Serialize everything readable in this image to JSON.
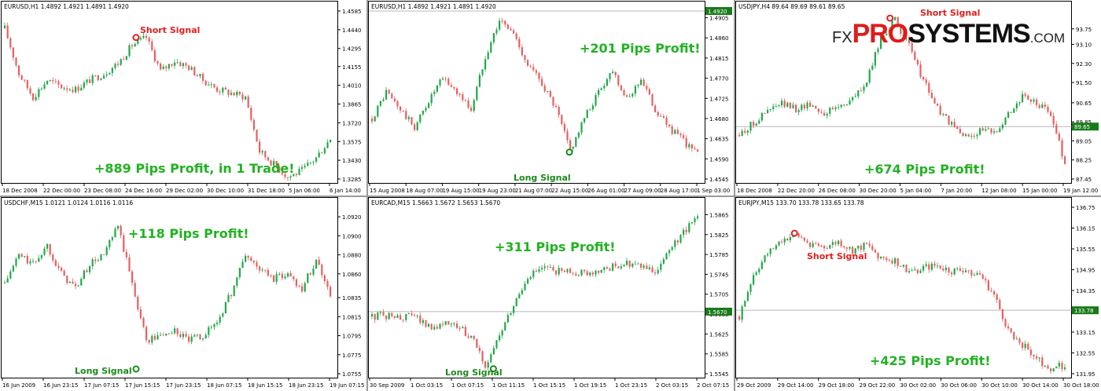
{
  "logo": {
    "prefix": "FX",
    "brand_red": "PRO",
    "brand_black": "SYSTEMS",
    "suffix": ".COM"
  },
  "colors": {
    "bull": "#22a84a",
    "bear": "#e66060",
    "axis": "#000000",
    "profit_text": "#22b222",
    "signal_short": "#e02020",
    "signal_long": "#1a8a1a"
  },
  "chart_data": [
    {
      "type": "candlestick",
      "title": "EURUSD,H1  1.4892 1.4921 1.4891 1.4920",
      "ylim": [
        1.3285,
        1.4585
      ],
      "yticks": [
        "1.4585",
        "1.4440",
        "1.4295",
        "1.4155",
        "1.4010",
        "1.3865",
        "1.3720",
        "1.3575",
        "1.3430",
        "1.3285"
      ],
      "xticks": [
        "18 Dec 2008",
        "22 Dec 00:00",
        "23 Dec 08:00",
        "24 Dec 16:00",
        "29 Dec 02:00",
        "30 Dec 10:00",
        "31 Dec 18:00",
        "5 Jan 06:00",
        "6 Jan 14:00"
      ],
      "close_path": [
        1.445,
        1.41,
        1.392,
        1.405,
        1.4,
        1.398,
        1.405,
        1.41,
        1.418,
        1.432,
        1.438,
        1.412,
        1.42,
        1.415,
        1.405,
        1.398,
        1.395,
        1.392,
        1.35,
        1.34,
        1.33,
        1.335,
        1.345,
        1.36
      ],
      "last_price": null,
      "annotations": [
        {
          "kind": "profit",
          "text": "+889 Pips Profit, in 1 Trade!"
        },
        {
          "kind": "signal_short",
          "text": "Short Signal",
          "at": 0.4,
          "price": 1.438
        }
      ]
    },
    {
      "type": "candlestick",
      "title": "EURUSD,H1  1.4892 1.4921 1.4891 1.4920",
      "ylim": [
        1.4545,
        1.492
      ],
      "yticks": [
        "1.4905",
        "1.4860",
        "1.4815",
        "1.4770",
        "1.4725",
        "1.4680",
        "1.4635",
        "1.4590",
        "1.4545"
      ],
      "xticks": [
        "15 Aug 2008",
        "18 Aug 07:00",
        "19 Aug 15:00",
        "19 Aug 23:00",
        "21 Aug 07:00",
        "22 Aug 15:00",
        "26 Aug 01:00",
        "27 Aug 09:00",
        "28 Aug 17:00",
        "1 Sep 03:00"
      ],
      "close_path": [
        1.468,
        1.474,
        1.47,
        1.466,
        1.472,
        1.477,
        1.474,
        1.47,
        1.482,
        1.49,
        1.487,
        1.48,
        1.476,
        1.47,
        1.461,
        1.468,
        1.474,
        1.479,
        1.472,
        1.477,
        1.47,
        1.466,
        1.463,
        1.46
      ],
      "last_price": "1.4920",
      "annotations": [
        {
          "kind": "profit",
          "text": "+201 Pips Profit!"
        },
        {
          "kind": "signal_long",
          "text": "Long Signal",
          "at": 0.6,
          "price": 1.4605
        }
      ]
    },
    {
      "type": "candlestick",
      "title": "USDJPY,H4  89.64 89.69 89.61 89.65",
      "ylim": [
        87.45,
        94.5
      ],
      "yticks": [
        "93.75",
        "93.10",
        "92.30",
        "91.50",
        "90.65",
        "89.85",
        "89.05",
        "88.25",
        "87.45"
      ],
      "xticks": [
        "18 Dec 2008",
        "22 Dec 20:00",
        "26 Dec 08:00",
        "30 Dec 20:00",
        "5 Jan 04:00",
        "7 Jan 20:00",
        "12 Jan 08:00",
        "15 Jan 00:00",
        "19 Jan 12:00"
      ],
      "close_path": [
        89.3,
        89.8,
        90.3,
        90.6,
        90.4,
        90.6,
        90.2,
        90.5,
        90.8,
        91.5,
        93.4,
        94.1,
        93.0,
        91.6,
        90.4,
        89.7,
        89.2,
        89.5,
        89.4,
        90.2,
        90.9,
        90.6,
        90.2,
        88.1
      ],
      "last_price": "89.65",
      "annotations": [
        {
          "kind": "profit",
          "text": "+674 Pips Profit!"
        },
        {
          "kind": "signal_short",
          "text": "Short Signal",
          "at": 0.46,
          "price": 94.2
        }
      ]
    },
    {
      "type": "candlestick",
      "title": "USDCHF,M15  1.0121 1.0124 1.0116 1.0116",
      "ylim": [
        1.0755,
        1.093
      ],
      "yticks": [
        "1.0920",
        "1.0900",
        "1.0880",
        "1.0860",
        "1.0835",
        "1.0815",
        "1.0795",
        "1.0775",
        "1.0755"
      ],
      "xticks": [
        "16 Jun 2009",
        "16 Jun 23:15",
        "17 Jun 07:15",
        "17 Jun 15:15",
        "17 Jun 23:15",
        "18 Jun 07:15",
        "18 Jun 15:15",
        "18 Jun 23:15",
        "19 Jun 07:15"
      ],
      "close_path": [
        1.085,
        1.088,
        1.087,
        1.089,
        1.086,
        1.0845,
        1.087,
        1.088,
        1.091,
        1.085,
        1.079,
        1.0795,
        1.08,
        1.079,
        1.0795,
        1.081,
        1.084,
        1.088,
        1.0865,
        1.0855,
        1.086,
        1.0845,
        1.0875,
        1.084
      ],
      "last_price": null,
      "annotations": [
        {
          "kind": "profit",
          "text": "+118 Pips Profit!"
        },
        {
          "kind": "signal_long",
          "text": "Long Signal",
          "at": 0.4,
          "price": 1.076
        }
      ]
    },
    {
      "type": "candlestick",
      "title": "EURCAD,M15  1.5663 1.5672 1.5653 1.5670",
      "ylim": [
        1.5545,
        1.588
      ],
      "yticks": [
        "1.5865",
        "1.5825",
        "1.5785",
        "1.5745",
        "1.5705",
        "1.5665",
        "1.5625",
        "1.5585",
        "1.5545"
      ],
      "xticks": [
        "30 Sep 2009",
        "1 Oct 03:15",
        "1 Oct 07:15",
        "1 Oct 11:15",
        "1 Oct 15:15",
        "1 Oct 19:15",
        "1 Oct 23:15",
        "2 Oct 03:15",
        "2 Oct 07:15"
      ],
      "close_path": [
        1.566,
        1.5662,
        1.5658,
        1.5662,
        1.564,
        1.5645,
        1.564,
        1.562,
        1.556,
        1.562,
        1.568,
        1.574,
        1.5755,
        1.5752,
        1.575,
        1.5748,
        1.5752,
        1.576,
        1.5765,
        1.576,
        1.575,
        1.579,
        1.583,
        1.586
      ],
      "last_price": "1.5670",
      "annotations": [
        {
          "kind": "profit",
          "text": "+311 Pips Profit!"
        },
        {
          "kind": "signal_long",
          "text": "Long Signal",
          "at": 0.37,
          "price": 1.5555
        }
      ]
    },
    {
      "type": "candlestick",
      "title": "EURJPY,M15  133.70 133.78 133.65 133.78",
      "ylim": [
        131.95,
        136.75
      ],
      "yticks": [
        "136.75",
        "136.15",
        "135.55",
        "134.95",
        "134.35",
        "133.75",
        "133.15",
        "132.55",
        "131.95"
      ],
      "xticks": [
        "29 Oct 2009",
        "29 Oct 14:00",
        "29 Oct 18:00",
        "29 Oct 22:00",
        "30 Oct 02:00",
        "30 Oct 06:00",
        "30 Oct 10:00",
        "30 Oct 14:00",
        "30 Oct 18:00"
      ],
      "close_path": [
        133.6,
        134.8,
        135.4,
        135.8,
        135.95,
        135.7,
        135.6,
        135.75,
        135.5,
        135.65,
        135.3,
        135.2,
        134.9,
        135.0,
        135.05,
        134.9,
        134.95,
        134.8,
        134.2,
        133.2,
        132.8,
        132.4,
        132.1,
        132.2
      ],
      "last_price": "133.78",
      "annotations": [
        {
          "kind": "profit",
          "text": "+425 Pips Profit!"
        },
        {
          "kind": "signal_short",
          "text": "Short Signal",
          "at": 0.17,
          "price": 136.0
        }
      ]
    }
  ]
}
